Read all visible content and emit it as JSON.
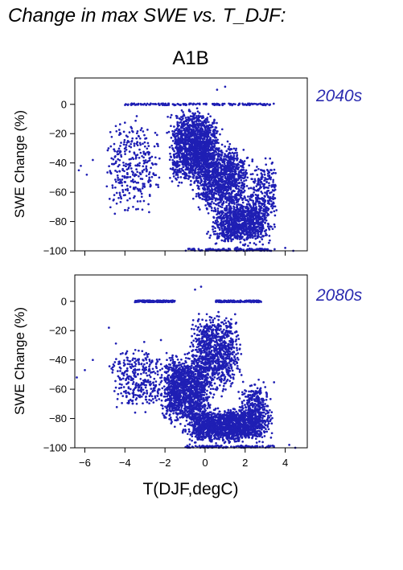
{
  "page": {
    "title": "Change in max SWE vs. T_DJF:"
  },
  "chart_data": {
    "type": "scatter",
    "scenario": "A1B",
    "xlabel": "T(DJF,degC)",
    "ylabel": "SWE Change (%)",
    "xlim": [
      -6.5,
      5.1
    ],
    "ylim": [
      -100,
      18
    ],
    "xticks": [
      -6,
      -4,
      -2,
      0,
      2,
      4
    ],
    "xtick_labels": [
      "−6",
      "−4",
      "−2",
      "0",
      "2",
      "4"
    ],
    "yticks": [
      0,
      -20,
      -40,
      -60,
      -80,
      -100
    ],
    "ytick_labels": [
      "0",
      "−20",
      "−40",
      "−60",
      "−80",
      "−100"
    ],
    "marker_color": "#1f1fb4",
    "label_color": "#2b2bb0",
    "grid": false,
    "panels": [
      {
        "label": "2040s",
        "cloud": [
          {
            "t": [
              -5.2,
              -2.0
            ],
            "y": [
              -85,
              -1
            ],
            "n": 320
          },
          {
            "t": [
              -2.0,
              1.0
            ],
            "y": [
              -60,
              2
            ],
            "n": 1500
          },
          {
            "t": [
              -1.0,
              2.5
            ],
            "y": [
              -80,
              -20
            ],
            "n": 1100
          },
          {
            "t": [
              0.0,
              3.6
            ],
            "y": [
              -100,
              -62
            ],
            "n": 1000
          },
          {
            "t": [
              2.0,
              3.8
            ],
            "y": [
              -90,
              -30
            ],
            "n": 250
          }
        ],
        "zero_line_x": [
          -4.0,
          3.5
        ],
        "outliers": [
          {
            "x": -6.3,
            "y": -45
          },
          {
            "x": -6.2,
            "y": -42
          },
          {
            "x": -5.9,
            "y": -48
          },
          {
            "x": -5.6,
            "y": -38
          },
          {
            "x": 0.6,
            "y": 10
          },
          {
            "x": 1.0,
            "y": 12
          },
          {
            "x": 4.4,
            "y": -100
          },
          {
            "x": 4.0,
            "y": -98
          },
          {
            "x": 3.5,
            "y": -55
          }
        ]
      },
      {
        "label": "2080s",
        "cloud": [
          {
            "t": [
              -5.0,
              -1.8
            ],
            "y": [
              -82,
              -25
            ],
            "n": 320
          },
          {
            "t": [
              -2.5,
              0.5
            ],
            "y": [
              -90,
              -30
            ],
            "n": 1300
          },
          {
            "t": [
              -1.0,
              2.0
            ],
            "y": [
              -70,
              0
            ],
            "n": 900
          },
          {
            "t": [
              -1.5,
              3.5
            ],
            "y": [
              -100,
              -70
            ],
            "n": 1600
          },
          {
            "t": [
              1.5,
              3.5
            ],
            "y": [
              -95,
              -50
            ],
            "n": 300
          }
        ],
        "zero_line_x": [
          -3.5,
          -1.5
        ],
        "zero_line_x2": [
          0.5,
          2.8
        ],
        "outliers": [
          {
            "x": -6.4,
            "y": -52
          },
          {
            "x": -6.0,
            "y": -47
          },
          {
            "x": -5.6,
            "y": -40
          },
          {
            "x": -4.8,
            "y": -18
          },
          {
            "x": -0.2,
            "y": 10
          },
          {
            "x": -0.5,
            "y": 8
          },
          {
            "x": 4.5,
            "y": -100
          },
          {
            "x": 4.2,
            "y": -98
          }
        ]
      }
    ]
  }
}
